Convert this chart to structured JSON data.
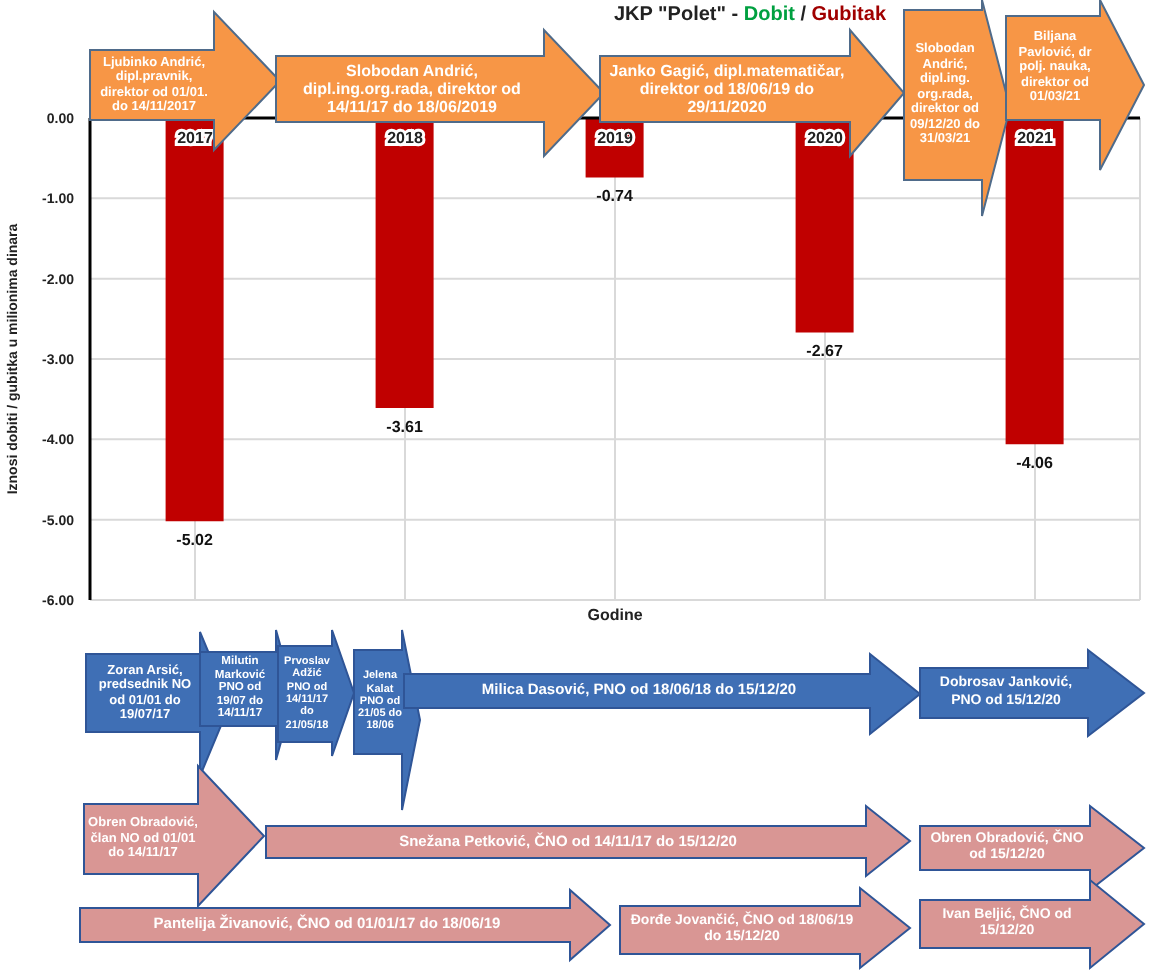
{
  "chart_data": {
    "type": "bar",
    "title": "JKP \"Polet\" - Dobit / Gubitak",
    "xlabel": "Godine",
    "ylabel": "Iznosi dobiti / gubitka u milionima dinara",
    "categories": [
      "2017",
      "2018",
      "2019",
      "2020",
      "2021"
    ],
    "values": [
      -5.02,
      -3.61,
      -0.74,
      -2.67,
      -4.06
    ],
    "color": "#c00000",
    "data_labels": true,
    "ylim": [
      -6,
      0
    ],
    "yticks": [
      {
        "value": 0,
        "label": "0.00"
      },
      {
        "value": -1,
        "label": "-1.00"
      },
      {
        "value": -2,
        "label": "-2.00"
      },
      {
        "value": -3,
        "label": "-3.00"
      },
      {
        "value": -4,
        "label": "-4.00"
      },
      {
        "value": -5,
        "label": "-5.00"
      },
      {
        "value": -6,
        "label": "-6.00"
      }
    ],
    "grid": true,
    "legend": false,
    "annotations": [
      "Ljubinko Andrić, dipl.pravnik, direktor od 01/01. do 14/11/2017",
      "Slobodan Andrić, dipl.ing.org.rada, direktor od 14/11/17  do 18/06/2019",
      "Janko Gagić, dipl.matematičar, direktor od 18/06/19 do 29/11/2020",
      "Slobodan Andrić, dipl.ing. org.rada, direktor od 09/12/20 do 31/03/21",
      "Biljana Pavlović,  dr polj. nauka, direktor od 01/03/21",
      "Zoran Arsić, predsednik NO  od 01/01 do 19/07/17",
      "Milutin Marković PNO od 19/07 do 14/11/17",
      "Prvoslav Adžić PNO od 14/11/17 do 21/05/18",
      "Jelena Kalat PNO od 21/05 do 18/06",
      "Milica Dasović, PNO od 18/06/18  do 15/12/20",
      "Dobrosav Janković, PNO od 15/12/20",
      "Obren Obradović, član NO od 01/01 do 14/11/17",
      "Snežana Petković, ČNO od 14/11/17  do 15/12/20",
      "Obren Obradović, ČNO od 15/12/20",
      "Pantelija Živanović, ČNO od 01/01/17  do 18/06/19",
      "Đorđe Jovančić, ČNO od 18/06/19 do 15/12/20",
      "Ivan Beljić, ČNO od 15/12/20"
    ]
  }
}
